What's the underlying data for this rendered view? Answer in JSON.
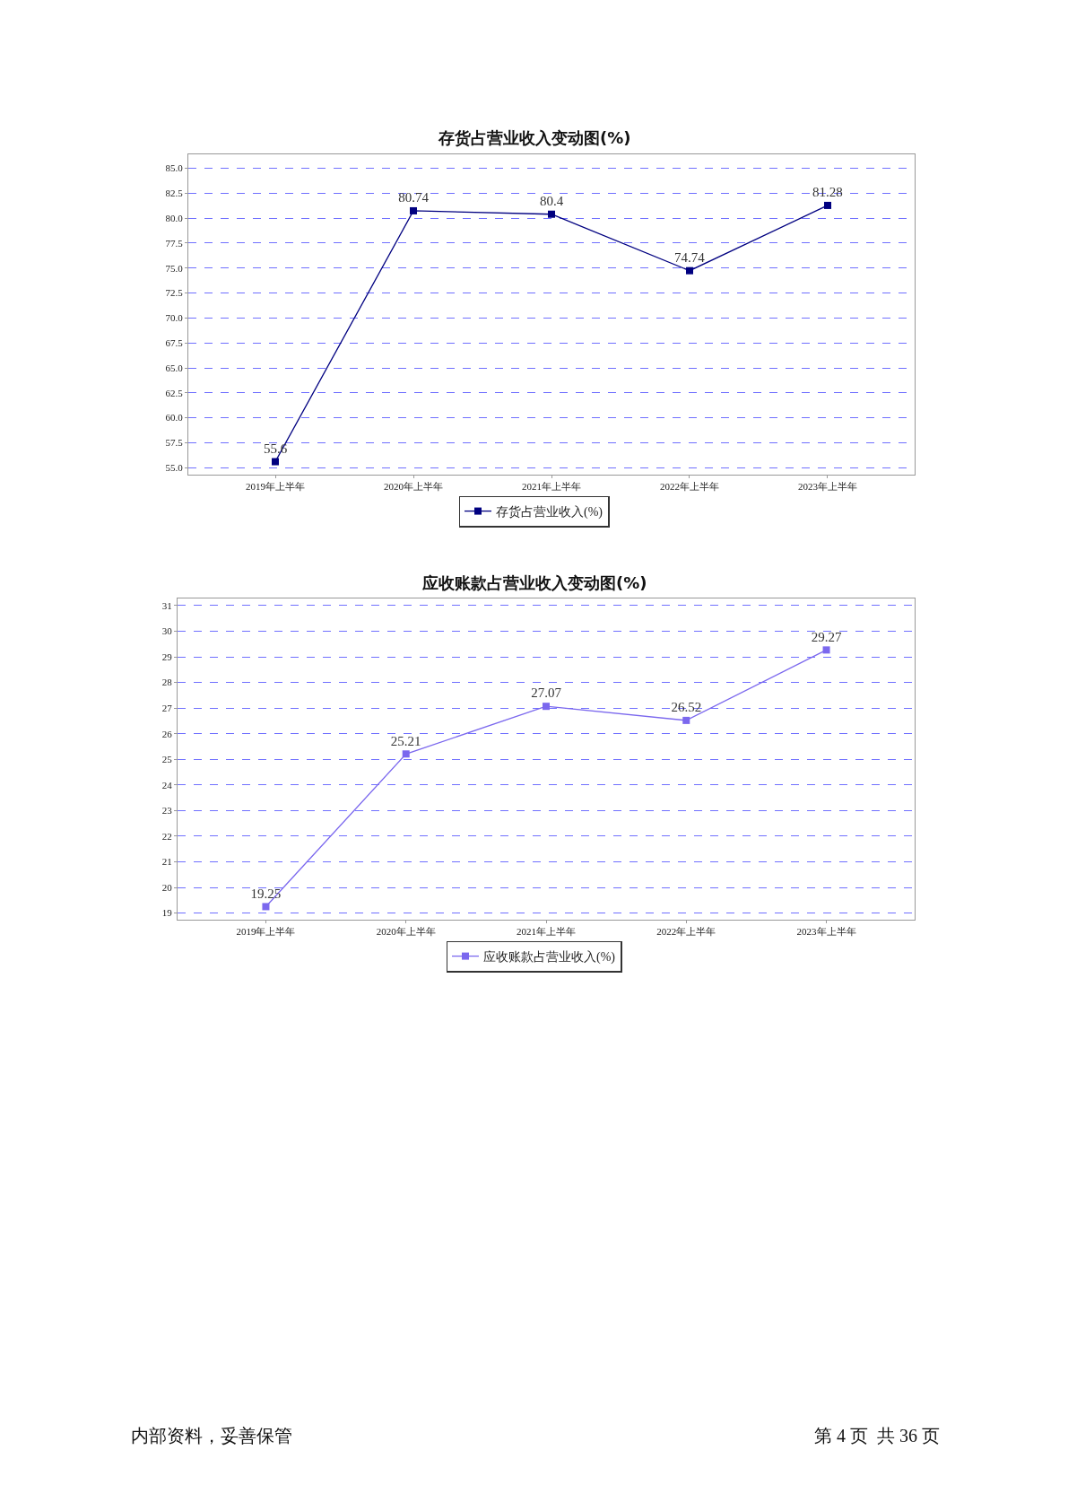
{
  "chart_data": [
    {
      "type": "line",
      "title": "存货占营业收入变动图(%)",
      "categories": [
        "2019年上半年",
        "2020年上半年",
        "2021年上半年",
        "2022年上半年",
        "2023年上半年"
      ],
      "series": [
        {
          "name": "存货占营业收入(%)",
          "color": "#000080",
          "values": [
            55.6,
            80.74,
            80.4,
            74.74,
            81.28
          ]
        }
      ],
      "ylim": [
        54.3,
        86.4
      ],
      "yticks": [
        {
          "value": 55,
          "label": "55.0"
        },
        {
          "value": 57.5,
          "label": "57.5"
        },
        {
          "value": 60,
          "label": "60.0"
        },
        {
          "value": 62.5,
          "label": "62.5"
        },
        {
          "value": 65,
          "label": "65.0"
        },
        {
          "value": 67.5,
          "label": "67.5"
        },
        {
          "value": 70,
          "label": "70.0"
        },
        {
          "value": 72.5,
          "label": "72.5"
        },
        {
          "value": 75,
          "label": "75.0"
        },
        {
          "value": 77.5,
          "label": "77.5"
        },
        {
          "value": 80,
          "label": "80.0"
        },
        {
          "value": 82.5,
          "label": "82.5"
        },
        {
          "value": 85,
          "label": "85.0"
        }
      ],
      "grid": "y",
      "legend": "bottom",
      "marker": "square",
      "line_style": "solid",
      "data_labels": true
    },
    {
      "type": "line",
      "title": "应收账款占营业收入变动图(%)",
      "categories": [
        "2019年上半年",
        "2020年上半年",
        "2021年上半年",
        "2022年上半年",
        "2023年上半年"
      ],
      "series": [
        {
          "name": "应收账款占营业收入(%)",
          "color": "#7b68ee",
          "values": [
            19.25,
            25.21,
            27.07,
            26.52,
            29.27
          ]
        }
      ],
      "ylim": [
        18.74,
        31.28
      ],
      "yticks": [
        19,
        20,
        21,
        22,
        23,
        24,
        25,
        26,
        27,
        28,
        29,
        30,
        31
      ],
      "grid": "y",
      "legend": "bottom",
      "marker": "square",
      "line_style": "solid",
      "data_labels": true,
      "annotations": [
        "内部资料，妥善保管",
        "第 4 页  共 36 页"
      ]
    }
  ]
}
